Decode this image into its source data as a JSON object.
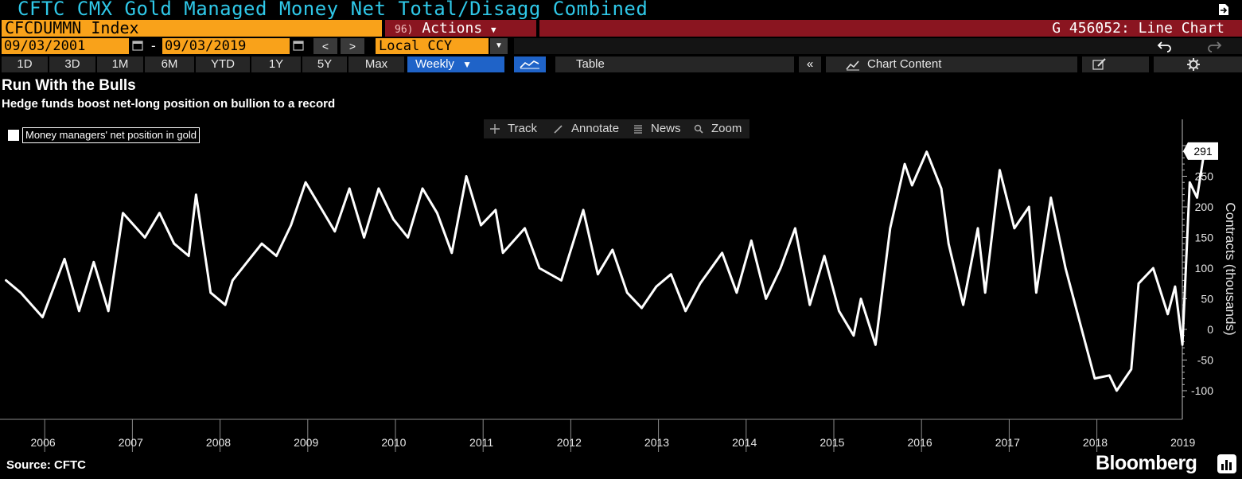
{
  "terminal": {
    "window_title": "CFTC CMX Gold Managed Money Net Total/Disagg Combined",
    "ticker": "CFCDUMMN Index",
    "actions_num": "96)",
    "actions_label": "Actions",
    "chart_id": "G 456052: Line Chart",
    "start_date": "09/03/2001",
    "end_date": "09/03/2019",
    "date_separator": "-",
    "prev_label": "<",
    "next_label": ">",
    "currency": "Local CCY",
    "ranges": [
      "1D",
      "3D",
      "1M",
      "6M",
      "YTD",
      "1Y",
      "5Y",
      "Max"
    ],
    "frequency": "Weekly",
    "table_label": "Table",
    "collapse_label": "«",
    "chart_content_label": "Chart Content",
    "tools": [
      "Track",
      "Annotate",
      "News",
      "Zoom"
    ],
    "accent_orange": "#f9a21a",
    "accent_red": "#8a1520",
    "accent_blue": "#1f63c8",
    "title_cyan": "#2fc8e8"
  },
  "chart_data": {
    "type": "line",
    "title": "Run With the Bulls",
    "subtitle": "Hedge funds boost net-long position on bullion to a record",
    "ylabel": "Contracts (thousands)",
    "xlabel": "",
    "ylim": [
      -120,
      340
    ],
    "yticks": [
      250,
      200,
      150,
      100,
      50,
      0,
      -50,
      -100
    ],
    "x_ticks": [
      "2006",
      "2007",
      "2008",
      "2009",
      "2010",
      "2011",
      "2012",
      "2013",
      "2014",
      "2015",
      "2016",
      "2017",
      "2018",
      "2019"
    ],
    "grid": false,
    "legend_position": "top-left",
    "last_value_label": "291",
    "series": [
      {
        "name": "Money managers' net position in gold",
        "color": "#ffffff",
        "x": [
          "2006-01",
          "2006-03",
          "2006-06",
          "2006-09",
          "2006-11",
          "2007-01",
          "2007-03",
          "2007-05",
          "2007-08",
          "2007-10",
          "2007-12",
          "2008-02",
          "2008-03",
          "2008-05",
          "2008-07",
          "2008-08",
          "2008-10",
          "2008-12",
          "2009-02",
          "2009-04",
          "2009-06",
          "2009-08",
          "2009-10",
          "2009-12",
          "2010-02",
          "2010-04",
          "2010-06",
          "2010-08",
          "2010-10",
          "2010-12",
          "2011-02",
          "2011-04",
          "2011-06",
          "2011-08",
          "2011-09",
          "2011-12",
          "2012-02",
          "2012-05",
          "2012-08",
          "2012-10",
          "2012-12",
          "2013-02",
          "2013-04",
          "2013-06",
          "2013-08",
          "2013-10",
          "2013-12",
          "2014-03",
          "2014-05",
          "2014-07",
          "2014-09",
          "2014-11",
          "2015-01",
          "2015-03",
          "2015-05",
          "2015-07",
          "2015-09",
          "2015-10",
          "2015-12",
          "2016-02",
          "2016-04",
          "2016-05",
          "2016-07",
          "2016-09",
          "2016-10",
          "2016-12",
          "2017-02",
          "2017-03",
          "2017-05",
          "2017-07",
          "2017-09",
          "2017-10",
          "2017-12",
          "2018-02",
          "2018-04",
          "2018-06",
          "2018-08",
          "2018-09",
          "2018-11",
          "2018-12",
          "2019-02",
          "2019-04",
          "2019-05",
          "2019-06",
          "2019-07",
          "2019-08",
          "2019-09"
        ],
        "values": [
          80,
          60,
          20,
          115,
          30,
          110,
          30,
          190,
          150,
          190,
          140,
          120,
          220,
          60,
          40,
          80,
          110,
          140,
          120,
          170,
          240,
          200,
          160,
          230,
          150,
          230,
          180,
          150,
          230,
          190,
          125,
          250,
          170,
          195,
          125,
          165,
          100,
          80,
          195,
          90,
          130,
          60,
          35,
          70,
          90,
          30,
          75,
          125,
          60,
          145,
          50,
          100,
          165,
          40,
          120,
          30,
          -10,
          50,
          -25,
          165,
          270,
          235,
          290,
          230,
          140,
          40,
          165,
          60,
          260,
          165,
          200,
          60,
          215,
          100,
          10,
          -80,
          -75,
          -100,
          -65,
          75,
          100,
          25,
          70,
          -25,
          240,
          215,
          291
        ]
      }
    ]
  },
  "footer": {
    "source": "Source: CFTC",
    "brand": "Bloomberg"
  }
}
